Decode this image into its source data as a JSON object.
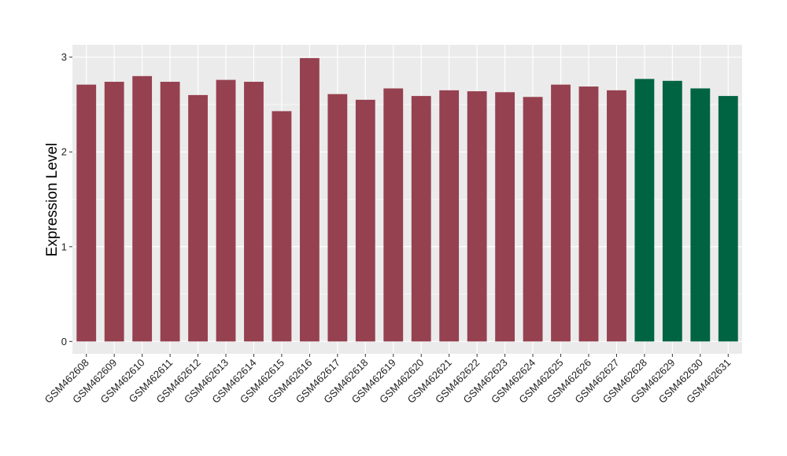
{
  "chart_data": {
    "type": "bar",
    "title": "",
    "xlabel": "",
    "ylabel": "Expression Level",
    "ylim": [
      -0.13,
      3.13
    ],
    "yticks": [
      0,
      1,
      2,
      3
    ],
    "grid": true,
    "panel_background": "#EBEBEB",
    "grid_color": "#FFFFFF",
    "categories": [
      "GSM462608",
      "GSM462609",
      "GSM462610",
      "GSM462611",
      "GSM462612",
      "GSM462613",
      "GSM462614",
      "GSM462615",
      "GSM462616",
      "GSM462617",
      "GSM462618",
      "GSM462619",
      "GSM462620",
      "GSM462621",
      "GSM462622",
      "GSM462623",
      "GSM462624",
      "GSM462625",
      "GSM462626",
      "GSM462627",
      "GSM462628",
      "GSM462629",
      "GSM462630",
      "GSM462631"
    ],
    "values": [
      2.71,
      2.74,
      2.8,
      2.74,
      2.6,
      2.76,
      2.74,
      2.43,
      2.99,
      2.61,
      2.55,
      2.67,
      2.59,
      2.65,
      2.64,
      2.63,
      2.58,
      2.71,
      2.69,
      2.65,
      2.77,
      2.75,
      2.67,
      2.59
    ],
    "colors": [
      "#964150",
      "#964150",
      "#964150",
      "#964150",
      "#964150",
      "#964150",
      "#964150",
      "#964150",
      "#964150",
      "#964150",
      "#964150",
      "#964150",
      "#964150",
      "#964150",
      "#964150",
      "#964150",
      "#964150",
      "#964150",
      "#964150",
      "#964150",
      "#006442",
      "#006442",
      "#006442",
      "#006442"
    ]
  }
}
